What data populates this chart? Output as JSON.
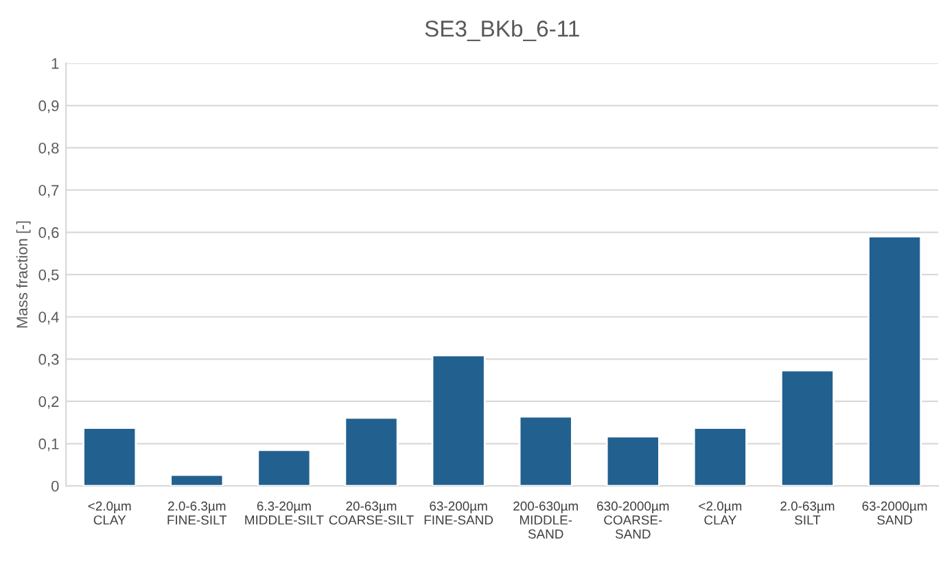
{
  "chart_data": {
    "type": "bar",
    "title": "SE3_BKb_6-11",
    "ylabel": "Mass fraction [-]",
    "categories": [
      "<2.0µm\nCLAY",
      "2.0-6.3µm\nFINE-SILT",
      "6.3-20µm\nMIDDLE-SILT",
      "20-63µm\nCOARSE-SILT",
      "63-200µm\nFINE-SAND",
      "200-630µm\nMIDDLE-\nSAND",
      "630-2000µm\nCOARSE-\nSAND",
      "<2.0µm\nCLAY",
      "2.0-63µm\nSILT",
      "63-2000µm\nSAND"
    ],
    "values": [
      0.137,
      0.026,
      0.085,
      0.161,
      0.309,
      0.164,
      0.117,
      0.137,
      0.273,
      0.59
    ],
    "color": "#22608f",
    "ylim": [
      0,
      1
    ],
    "yticks": [
      0,
      {
        "value": 0.1,
        "label": "0,1"
      },
      {
        "value": 0.2,
        "label": "0,2"
      },
      {
        "value": 0.3,
        "label": "0,3"
      },
      {
        "value": 0.4,
        "label": "0,4"
      },
      {
        "value": 0.5,
        "label": "0,5"
      },
      {
        "value": 0.6,
        "label": "0,6"
      },
      {
        "value": 0.7,
        "label": "0,7"
      },
      {
        "value": 0.8,
        "label": "0,8"
      },
      {
        "value": 0.9,
        "label": "0,9"
      },
      1
    ],
    "grid": "y"
  }
}
